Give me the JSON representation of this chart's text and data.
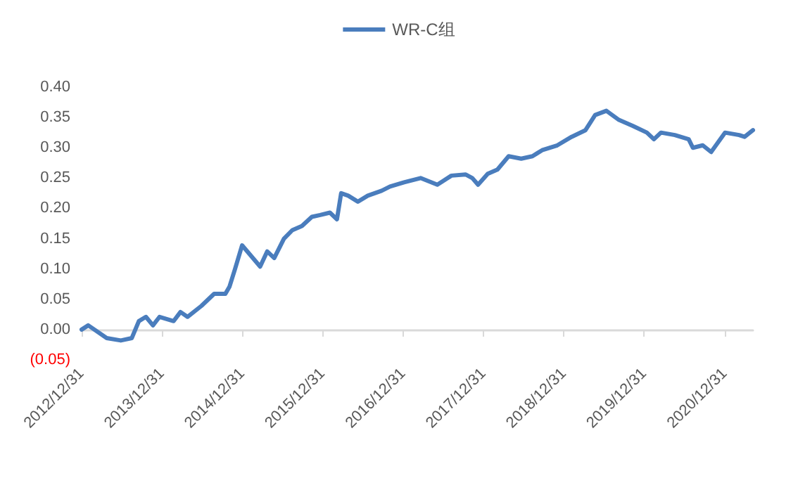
{
  "chart_data": {
    "type": "line",
    "legend": "top",
    "grid": false,
    "marker": "none",
    "line_style": "solid",
    "xlim": [
      "2012-12-31",
      "2021-05-08"
    ],
    "xticks": [
      {
        "value": "2012-12-31",
        "label": "2012/12/31"
      },
      {
        "value": "2013-12-31",
        "label": "2013/12/31"
      },
      {
        "value": "2014-12-31",
        "label": "2014/12/31"
      },
      {
        "value": "2015-12-31",
        "label": "2015/12/31"
      },
      {
        "value": "2016-12-31",
        "label": "2016/12/31"
      },
      {
        "value": "2017-12-31",
        "label": "2017/12/31"
      },
      {
        "value": "2018-12-31",
        "label": "2018/12/31"
      },
      {
        "value": "2019-12-31",
        "label": "2019/12/31"
      },
      {
        "value": "2020-12-31",
        "label": "2020/12/31"
      }
    ],
    "ylim": [
      -0.05,
      0.4
    ],
    "yticks": [
      {
        "value": -0.05,
        "label": "(0.05)"
      },
      {
        "value": 0,
        "label": "0.00"
      },
      {
        "value": 0.05,
        "label": "0.05"
      },
      {
        "value": 0.1,
        "label": "0.10"
      },
      {
        "value": 0.15,
        "label": "0.15"
      },
      {
        "value": 0.2,
        "label": "0.20"
      },
      {
        "value": 0.25,
        "label": "0.25"
      },
      {
        "value": 0.3,
        "label": "0.30"
      },
      {
        "value": 0.35,
        "label": "0.35"
      },
      {
        "value": 0.4,
        "label": "0.40"
      }
    ],
    "series": [
      {
        "name": "WR-C组",
        "color": "#4a7dbd",
        "x": [
          "2012-12-31",
          "2013-01-30",
          "2013-04-24",
          "2013-06-27",
          "2013-08-16",
          "2013-09-17",
          "2013-10-19",
          "2013-11-20",
          "2013-12-20",
          "2014-02-22",
          "2014-03-25",
          "2014-04-26",
          "2014-06-28",
          "2014-08-25",
          "2014-10-15",
          "2014-11-03",
          "2014-11-28",
          "2014-12-30",
          "2015-03-22",
          "2015-04-23",
          "2015-05-25",
          "2015-07-08",
          "2015-08-15",
          "2015-09-28",
          "2015-11-12",
          "2015-12-20",
          "2016-02-02",
          "2016-03-05",
          "2016-03-24",
          "2016-04-25",
          "2016-06-08",
          "2016-07-23",
          "2016-09-24",
          "2016-11-01",
          "2017-01-04",
          "2017-03-20",
          "2017-06-04",
          "2017-08-07",
          "2017-10-10",
          "2017-11-10",
          "2017-12-06",
          "2018-01-19",
          "2018-03-04",
          "2018-04-24",
          "2018-06-20",
          "2018-08-10",
          "2018-09-23",
          "2018-12-01",
          "2019-02-04",
          "2019-04-08",
          "2019-05-22",
          "2019-07-12",
          "2019-09-07",
          "2019-11-10",
          "2020-01-12",
          "2020-02-13",
          "2020-03-16",
          "2020-05-18",
          "2020-07-20",
          "2020-08-08",
          "2020-09-22",
          "2020-10-30",
          "2021-01-01",
          "2021-03-06",
          "2021-03-31",
          "2021-05-08"
        ],
        "values": [
          0.0,
          0.007,
          -0.014,
          -0.018,
          -0.014,
          0.014,
          0.021,
          0.007,
          0.021,
          0.014,
          0.029,
          0.021,
          0.039,
          0.059,
          0.059,
          0.071,
          0.1,
          0.139,
          0.104,
          0.129,
          0.118,
          0.15,
          0.164,
          0.171,
          0.186,
          0.189,
          0.193,
          0.182,
          0.225,
          0.221,
          0.211,
          0.221,
          0.229,
          0.236,
          0.243,
          0.25,
          0.239,
          0.254,
          0.256,
          0.25,
          0.239,
          0.257,
          0.264,
          0.286,
          0.282,
          0.286,
          0.296,
          0.304,
          0.318,
          0.329,
          0.354,
          0.361,
          0.346,
          0.336,
          0.325,
          0.314,
          0.325,
          0.321,
          0.314,
          0.3,
          0.304,
          0.293,
          0.325,
          0.321,
          0.318,
          0.329
        ]
      }
    ]
  }
}
